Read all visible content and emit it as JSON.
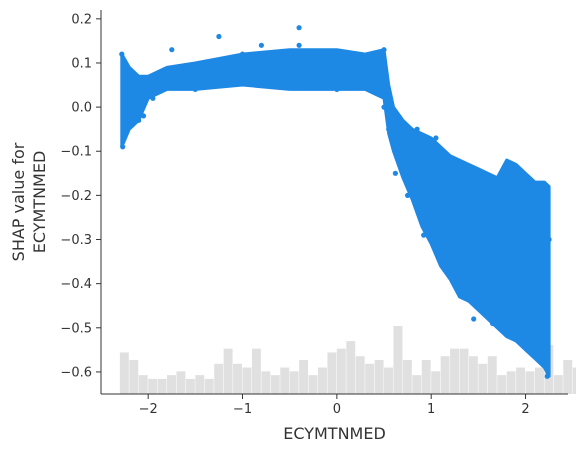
{
  "chart_data": {
    "type": "scatter",
    "title": "",
    "xlabel": "ECYMTNMED",
    "ylabel_lines": [
      "SHAP value for",
      "ECYMTNMED"
    ],
    "xlim": [
      -2.5,
      2.45
    ],
    "ylim": [
      -0.65,
      0.22
    ],
    "x_ticks": [
      -2,
      -1,
      0,
      1,
      2
    ],
    "x_tick_labels": [
      "−2",
      "−1",
      "0",
      "1",
      "2"
    ],
    "y_ticks": [
      0.2,
      0.1,
      0.0,
      -0.1,
      -0.2,
      -0.3,
      -0.4,
      -0.5,
      -0.6
    ],
    "y_tick_labels": [
      "0.2",
      "0.1",
      "0.0",
      "−0.1",
      "−0.2",
      "−0.3",
      "−0.4",
      "−0.5",
      "−0.6"
    ],
    "grid": false,
    "colors": {
      "points": "#1e88e5",
      "histogram": "#e0e0e0",
      "axis": "#333333"
    },
    "series": [
      {
        "points": [
          [
            -2.28,
            0.12
          ],
          [
            -2.27,
            -0.09
          ],
          [
            -2.26,
            0.09
          ],
          [
            -2.25,
            -0.05
          ],
          [
            -2.24,
            0.05
          ],
          [
            -2.22,
            0.0
          ],
          [
            -2.2,
            0.06
          ],
          [
            -2.18,
            -0.02
          ],
          [
            -2.15,
            0.02
          ],
          [
            -2.12,
            0.04
          ],
          [
            -2.1,
            -0.03
          ],
          [
            -2.05,
            -0.02
          ],
          [
            -2.0,
            0.06
          ],
          [
            -1.95,
            0.02
          ],
          [
            -1.9,
            0.07
          ],
          [
            -1.8,
            0.06
          ],
          [
            -1.75,
            0.13
          ],
          [
            -1.7,
            0.05
          ],
          [
            -1.6,
            0.09
          ],
          [
            -1.5,
            0.04
          ],
          [
            -1.4,
            0.1
          ],
          [
            -1.3,
            0.07
          ],
          [
            -1.25,
            0.16
          ],
          [
            -1.2,
            0.05
          ],
          [
            -1.1,
            0.1
          ],
          [
            -1.0,
            0.12
          ],
          [
            -0.9,
            0.06
          ],
          [
            -0.8,
            0.14
          ],
          [
            -0.7,
            0.08
          ],
          [
            -0.6,
            0.11
          ],
          [
            -0.5,
            0.05
          ],
          [
            -0.4,
            0.14
          ],
          [
            -0.4,
            0.18
          ],
          [
            -0.3,
            0.06
          ],
          [
            -0.2,
            0.12
          ],
          [
            -0.1,
            0.05
          ],
          [
            0.0,
            0.12
          ],
          [
            0.0,
            0.04
          ],
          [
            0.1,
            0.09
          ],
          [
            0.2,
            0.05
          ],
          [
            0.3,
            0.1
          ],
          [
            0.4,
            0.06
          ],
          [
            0.5,
            0.13
          ],
          [
            0.5,
            0.0
          ],
          [
            0.55,
            -0.05
          ],
          [
            0.6,
            -0.08
          ],
          [
            0.62,
            -0.15
          ],
          [
            0.65,
            -0.03
          ],
          [
            0.7,
            -0.12
          ],
          [
            0.75,
            -0.2
          ],
          [
            0.8,
            -0.18
          ],
          [
            0.85,
            -0.05
          ],
          [
            0.9,
            -0.15
          ],
          [
            0.92,
            -0.29
          ],
          [
            0.95,
            -0.1
          ],
          [
            1.0,
            -0.2
          ],
          [
            1.05,
            -0.07
          ],
          [
            1.1,
            -0.22
          ],
          [
            1.15,
            -0.34
          ],
          [
            1.2,
            -0.12
          ],
          [
            1.25,
            -0.26
          ],
          [
            1.3,
            -0.38
          ],
          [
            1.35,
            -0.2
          ],
          [
            1.4,
            -0.3
          ],
          [
            1.45,
            -0.48
          ],
          [
            1.5,
            -0.15
          ],
          [
            1.55,
            -0.41
          ],
          [
            1.6,
            -0.25
          ],
          [
            1.65,
            -0.49
          ],
          [
            1.7,
            -0.18
          ],
          [
            1.75,
            -0.38
          ],
          [
            1.8,
            -0.3
          ],
          [
            1.85,
            -0.13
          ],
          [
            1.9,
            -0.52
          ],
          [
            1.95,
            -0.29
          ],
          [
            2.0,
            -0.4
          ],
          [
            2.05,
            -0.2
          ],
          [
            2.1,
            -0.53
          ],
          [
            2.15,
            -0.24
          ],
          [
            2.2,
            -0.56
          ],
          [
            2.23,
            -0.61
          ],
          [
            2.25,
            -0.3
          ]
        ],
        "band_min": [
          [
            -2.28,
            -0.09
          ],
          [
            -2.2,
            -0.05
          ],
          [
            -2.1,
            -0.03
          ],
          [
            -2.0,
            0.02
          ],
          [
            -1.8,
            0.04
          ],
          [
            -1.5,
            0.04
          ],
          [
            -1.0,
            0.05
          ],
          [
            -0.5,
            0.04
          ],
          [
            0.0,
            0.04
          ],
          [
            0.3,
            0.04
          ],
          [
            0.5,
            0.02
          ],
          [
            0.55,
            -0.06
          ],
          [
            0.6,
            -0.1
          ],
          [
            0.7,
            -0.16
          ],
          [
            0.8,
            -0.21
          ],
          [
            0.9,
            -0.27
          ],
          [
            1.0,
            -0.31
          ],
          [
            1.1,
            -0.36
          ],
          [
            1.2,
            -0.39
          ],
          [
            1.3,
            -0.43
          ],
          [
            1.4,
            -0.44
          ],
          [
            1.5,
            -0.46
          ],
          [
            1.6,
            -0.48
          ],
          [
            1.7,
            -0.5
          ],
          [
            1.8,
            -0.52
          ],
          [
            1.9,
            -0.53
          ],
          [
            2.0,
            -0.55
          ],
          [
            2.1,
            -0.57
          ],
          [
            2.2,
            -0.59
          ],
          [
            2.25,
            -0.61
          ]
        ],
        "band_max": [
          [
            -2.28,
            0.12
          ],
          [
            -2.2,
            0.09
          ],
          [
            -2.1,
            0.07
          ],
          [
            -2.0,
            0.07
          ],
          [
            -1.8,
            0.09
          ],
          [
            -1.5,
            0.1
          ],
          [
            -1.0,
            0.12
          ],
          [
            -0.5,
            0.13
          ],
          [
            0.0,
            0.13
          ],
          [
            0.3,
            0.12
          ],
          [
            0.5,
            0.13
          ],
          [
            0.55,
            0.05
          ],
          [
            0.6,
            0.0
          ],
          [
            0.7,
            -0.03
          ],
          [
            0.8,
            -0.05
          ],
          [
            0.9,
            -0.06
          ],
          [
            1.0,
            -0.07
          ],
          [
            1.1,
            -0.09
          ],
          [
            1.2,
            -0.11
          ],
          [
            1.3,
            -0.12
          ],
          [
            1.4,
            -0.13
          ],
          [
            1.5,
            -0.14
          ],
          [
            1.6,
            -0.15
          ],
          [
            1.7,
            -0.16
          ],
          [
            1.8,
            -0.12
          ],
          [
            1.9,
            -0.13
          ],
          [
            2.0,
            -0.15
          ],
          [
            2.1,
            -0.17
          ],
          [
            2.2,
            -0.17
          ],
          [
            2.25,
            -0.18
          ]
        ]
      }
    ],
    "histogram": {
      "bin_edges_start": -2.3,
      "bin_width": 0.1,
      "heights": [
        0.11,
        0.09,
        0.05,
        0.04,
        0.04,
        0.05,
        0.06,
        0.04,
        0.05,
        0.04,
        0.08,
        0.12,
        0.08,
        0.07,
        0.12,
        0.06,
        0.05,
        0.07,
        0.06,
        0.09,
        0.05,
        0.07,
        0.11,
        0.12,
        0.14,
        0.1,
        0.08,
        0.09,
        0.07,
        0.18,
        0.09,
        0.05,
        0.09,
        0.06,
        0.1,
        0.12,
        0.12,
        0.1,
        0.08,
        0.1,
        0.05,
        0.06,
        0.07,
        0.06,
        0.07,
        0.13,
        0.05,
        0.09,
        0.07,
        0.05
      ]
    }
  }
}
